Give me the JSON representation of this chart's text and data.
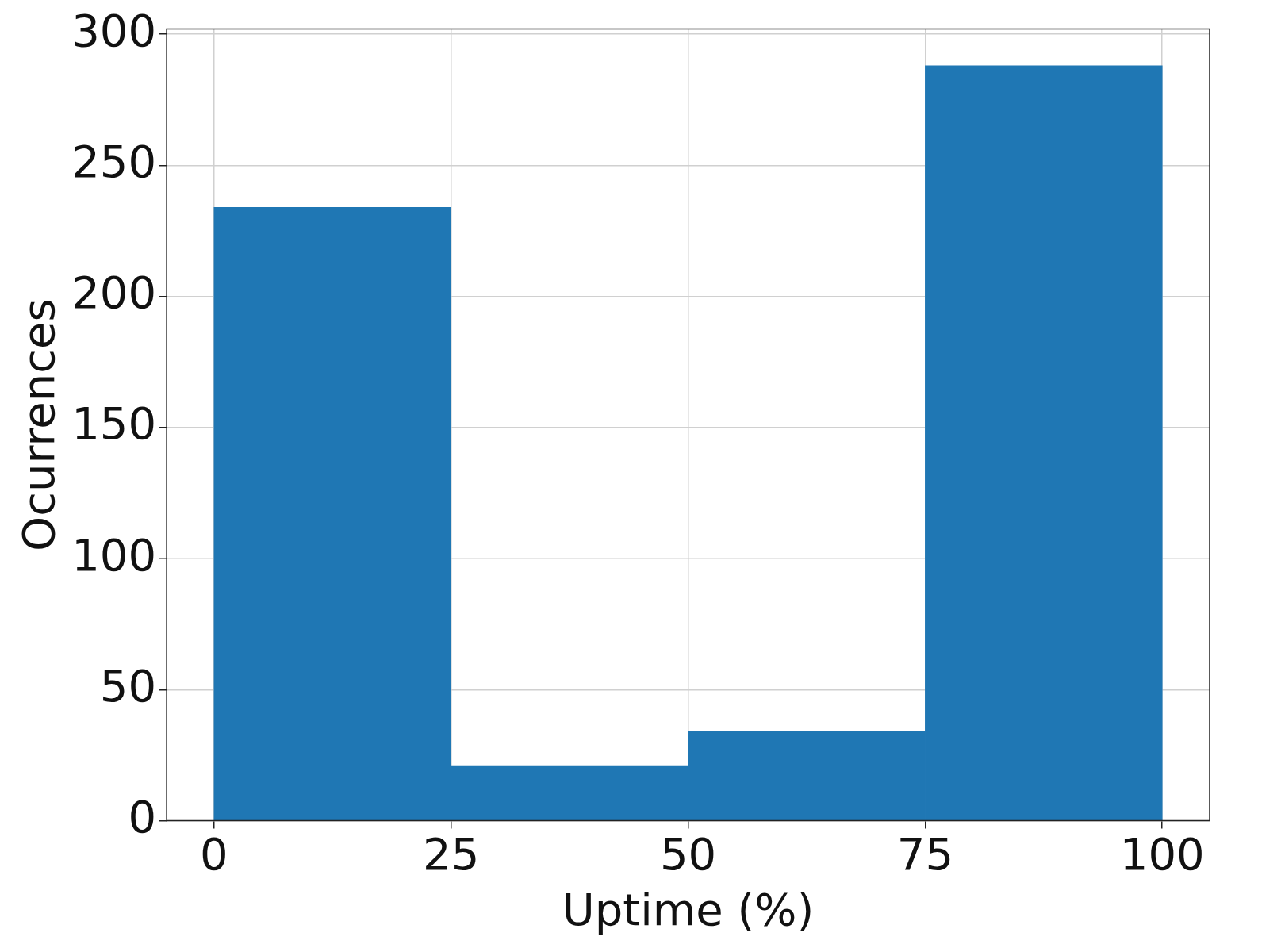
{
  "chart_data": {
    "type": "histogram",
    "xlabel": "Uptime (%)",
    "ylabel": "Ocurrences",
    "bins": [
      0,
      25,
      50,
      75,
      100
    ],
    "values": [
      234,
      21,
      34,
      288
    ],
    "color": "#1f77b4",
    "xlim": [
      -5,
      105
    ],
    "xticks": [
      0,
      25,
      50,
      75,
      100
    ],
    "ylim": [
      0,
      302
    ],
    "yticks": [
      0,
      50,
      100,
      150,
      200,
      250,
      300
    ],
    "grid": true,
    "legend": false
  }
}
